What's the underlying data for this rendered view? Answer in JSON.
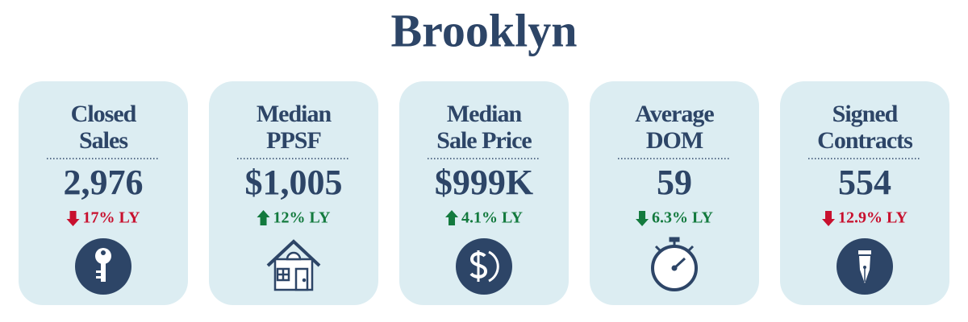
{
  "title": "Brooklyn",
  "cards": [
    {
      "label": [
        "Closed",
        "Sales"
      ],
      "value": "2,976",
      "change": "17% LY",
      "direction": "down",
      "color": "#c8102e"
    },
    {
      "label": [
        "Median",
        "PPSF"
      ],
      "value": "$1,005",
      "change": "12% LY",
      "direction": "up",
      "color": "#137a3e"
    },
    {
      "label": [
        "Median",
        "Sale Price"
      ],
      "value": "$999K",
      "change": "4.1% LY",
      "direction": "up",
      "color": "#137a3e"
    },
    {
      "label": [
        "Average",
        "DOM"
      ],
      "value": "59",
      "change": "6.3% LY",
      "direction": "down",
      "color": "#137a3e"
    },
    {
      "label": [
        "Signed",
        "Contracts"
      ],
      "value": "554",
      "change": "12.9% LY",
      "direction": "down",
      "color": "#c8102e"
    }
  ]
}
